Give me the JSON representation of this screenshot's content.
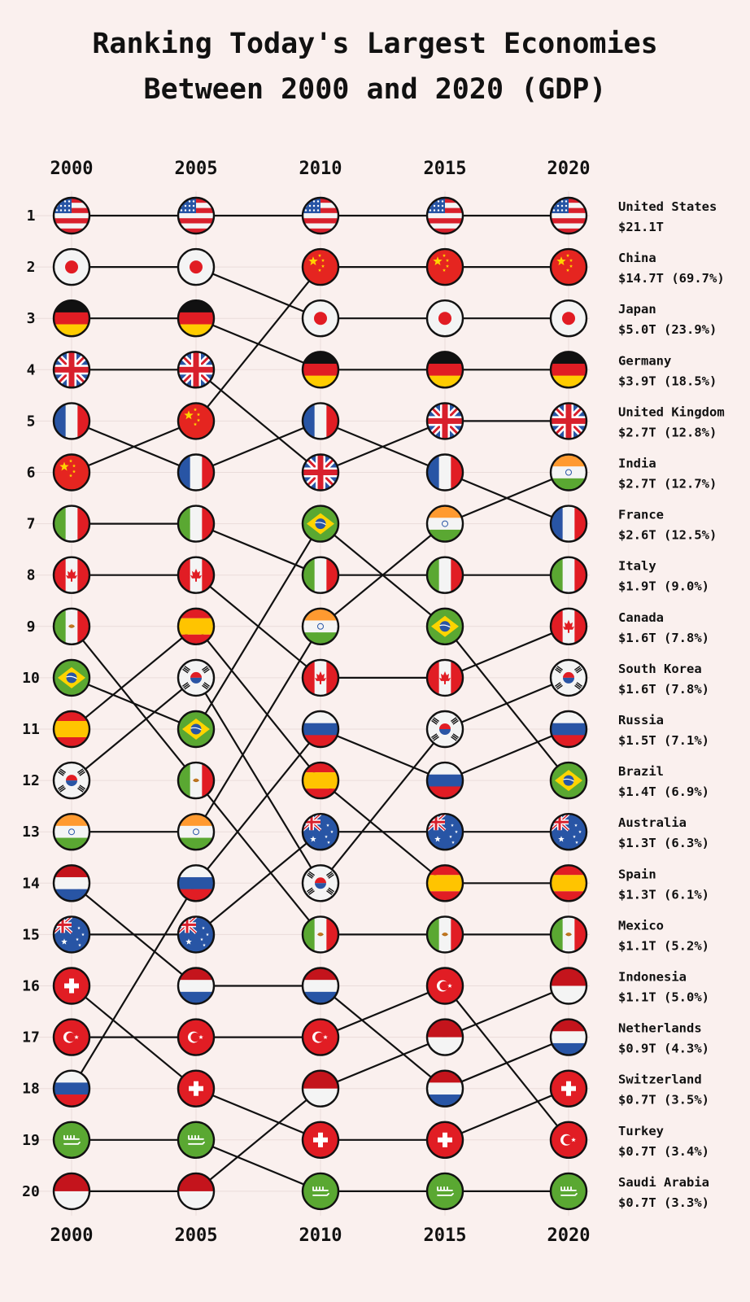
{
  "title_line1": "Ranking Today's Largest Economies",
  "title_line2": "Between 2000 and 2020 (GDP)",
  "chart_data": {
    "type": "bump",
    "title": "Ranking Today's Largest Economies Between 2000 and 2020 (GDP)",
    "years": [
      "2000",
      "2005",
      "2010",
      "2015",
      "2020"
    ],
    "ranks": [
      "1",
      "2",
      "3",
      "4",
      "5",
      "6",
      "7",
      "8",
      "9",
      "10",
      "11",
      "12",
      "13",
      "14",
      "15",
      "16",
      "17",
      "18",
      "19",
      "20"
    ],
    "grid": true,
    "series": [
      {
        "name": "United States",
        "gdp_2020": "$21.1T",
        "flag": "us-flag-icon",
        "ranks": [
          1,
          1,
          1,
          1,
          1
        ]
      },
      {
        "name": "China",
        "gdp_2020": "$14.7T (69.7%)",
        "flag": "china-flag-icon",
        "ranks": [
          6,
          5,
          2,
          2,
          2
        ]
      },
      {
        "name": "Japan",
        "gdp_2020": "$5.0T (23.9%)",
        "flag": "japan-flag-icon",
        "ranks": [
          2,
          2,
          3,
          3,
          3
        ]
      },
      {
        "name": "Germany",
        "gdp_2020": "$3.9T (18.5%)",
        "flag": "germany-flag-icon",
        "ranks": [
          3,
          3,
          4,
          4,
          4
        ]
      },
      {
        "name": "United Kingdom",
        "gdp_2020": "$2.7T (12.8%)",
        "flag": "uk-flag-icon",
        "ranks": [
          4,
          4,
          6,
          5,
          5
        ]
      },
      {
        "name": "India",
        "gdp_2020": "$2.7T (12.7%)",
        "flag": "india-flag-icon",
        "ranks": [
          13,
          13,
          9,
          7,
          6
        ]
      },
      {
        "name": "France",
        "gdp_2020": "$2.6T (12.5%)",
        "flag": "france-flag-icon",
        "ranks": [
          5,
          6,
          5,
          6,
          7
        ]
      },
      {
        "name": "Italy",
        "gdp_2020": "$1.9T (9.0%)",
        "flag": "italy-flag-icon",
        "ranks": [
          7,
          7,
          8,
          8,
          8
        ]
      },
      {
        "name": "Canada",
        "gdp_2020": "$1.6T (7.8%)",
        "flag": "canada-flag-icon",
        "ranks": [
          8,
          8,
          10,
          10,
          9
        ]
      },
      {
        "name": "South Korea",
        "gdp_2020": "$1.6T (7.8%)",
        "flag": "south-korea-flag-icon",
        "ranks": [
          12,
          10,
          14,
          11,
          10
        ]
      },
      {
        "name": "Russia",
        "gdp_2020": "$1.5T (7.1%)",
        "flag": "russia-flag-icon",
        "ranks": [
          18,
          14,
          11,
          12,
          11
        ]
      },
      {
        "name": "Brazil",
        "gdp_2020": "$1.4T (6.9%)",
        "flag": "brazil-flag-icon",
        "ranks": [
          10,
          11,
          7,
          9,
          12
        ]
      },
      {
        "name": "Australia",
        "gdp_2020": "$1.3T (6.3%)",
        "flag": "australia-flag-icon",
        "ranks": [
          15,
          15,
          13,
          13,
          13
        ]
      },
      {
        "name": "Spain",
        "gdp_2020": "$1.3T (6.1%)",
        "flag": "spain-flag-icon",
        "ranks": [
          11,
          9,
          12,
          14,
          14
        ]
      },
      {
        "name": "Mexico",
        "gdp_2020": "$1.1T (5.2%)",
        "flag": "mexico-flag-icon",
        "ranks": [
          9,
          12,
          15,
          15,
          15
        ]
      },
      {
        "name": "Indonesia",
        "gdp_2020": "$1.1T (5.0%)",
        "flag": "indonesia-flag-icon",
        "ranks": [
          20,
          20,
          18,
          17,
          16
        ]
      },
      {
        "name": "Netherlands",
        "gdp_2020": "$0.9T (4.3%)",
        "flag": "netherlands-flag-icon",
        "ranks": [
          14,
          16,
          16,
          18,
          17
        ]
      },
      {
        "name": "Switzerland",
        "gdp_2020": "$0.7T (3.5%)",
        "flag": "switzerland-flag-icon",
        "ranks": [
          16,
          18,
          19,
          19,
          18
        ]
      },
      {
        "name": "Turkey",
        "gdp_2020": "$0.7T (3.4%)",
        "flag": "turkey-flag-icon",
        "ranks": [
          17,
          17,
          17,
          16,
          19
        ]
      },
      {
        "name": "Saudi Arabia",
        "gdp_2020": "$0.7T (3.3%)",
        "flag": "saudi-arabia-flag-icon",
        "ranks": [
          19,
          19,
          20,
          20,
          20
        ]
      }
    ]
  },
  "colors": {
    "background": "#faf0ee",
    "line": "#111111",
    "grid": "#eadcda"
  }
}
